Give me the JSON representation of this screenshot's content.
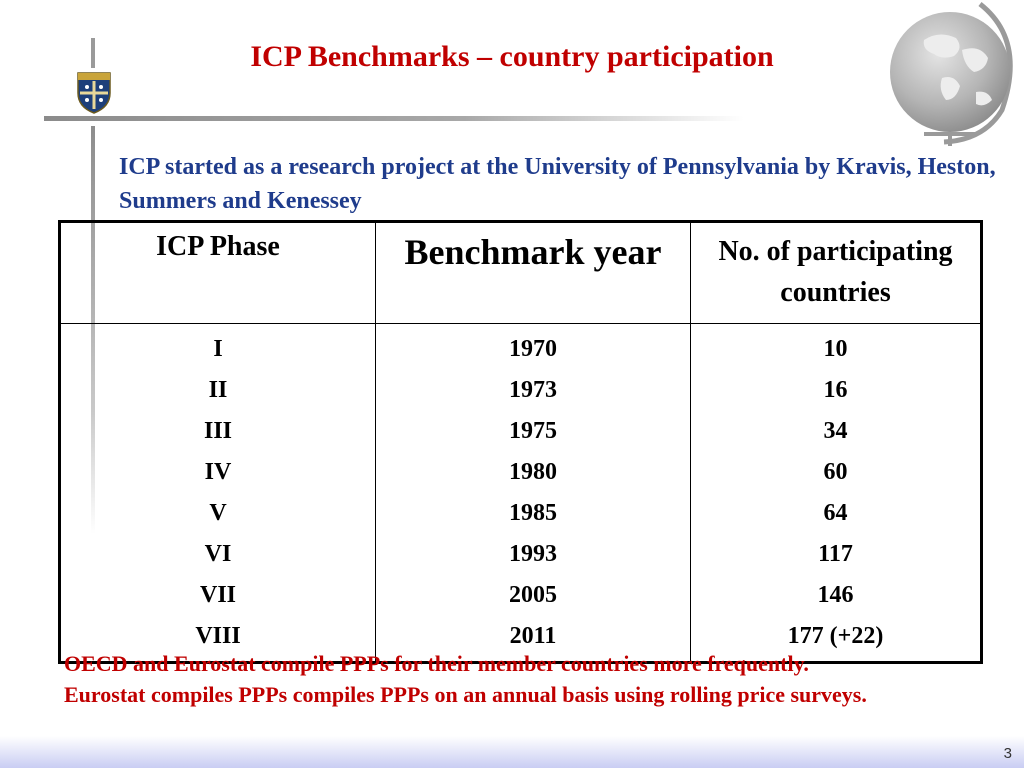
{
  "slide": {
    "title": "ICP Benchmarks – country participation",
    "intro": "ICP started as a research project at the University of Pennsylvania by Kravis, Heston, Summers and Kenessey",
    "page_number": "3"
  },
  "table": {
    "headers": {
      "phase": "ICP Phase",
      "year": "Benchmark year",
      "countries": "No. of participating countries"
    },
    "rows": [
      {
        "phase": "I",
        "year": "1970",
        "countries": "10"
      },
      {
        "phase": "II",
        "year": "1973",
        "countries": "16"
      },
      {
        "phase": "III",
        "year": "1975",
        "countries": "34"
      },
      {
        "phase": "IV",
        "year": "1980",
        "countries": "60"
      },
      {
        "phase": "V",
        "year": "1985",
        "countries": "64"
      },
      {
        "phase": "VI",
        "year": "1993",
        "countries": "117"
      },
      {
        "phase": "VII",
        "year": "2005",
        "countries": "146"
      },
      {
        "phase": "VIII",
        "year": "2011",
        "countries": "177 (+22)"
      }
    ]
  },
  "notes": {
    "line1": "OECD and Eurostat compile PPPs for their member countries more frequently.",
    "line2": "Eurostat compiles PPPs compiles PPPs on an annual basis using rolling price surveys."
  },
  "colors": {
    "title": "#c00000",
    "intro": "#1f3c8c",
    "notes": "#c00000",
    "footer_band": "#c9cdf3"
  },
  "icons": {
    "crest": "university-crest-icon",
    "globe": "globe-icon"
  }
}
